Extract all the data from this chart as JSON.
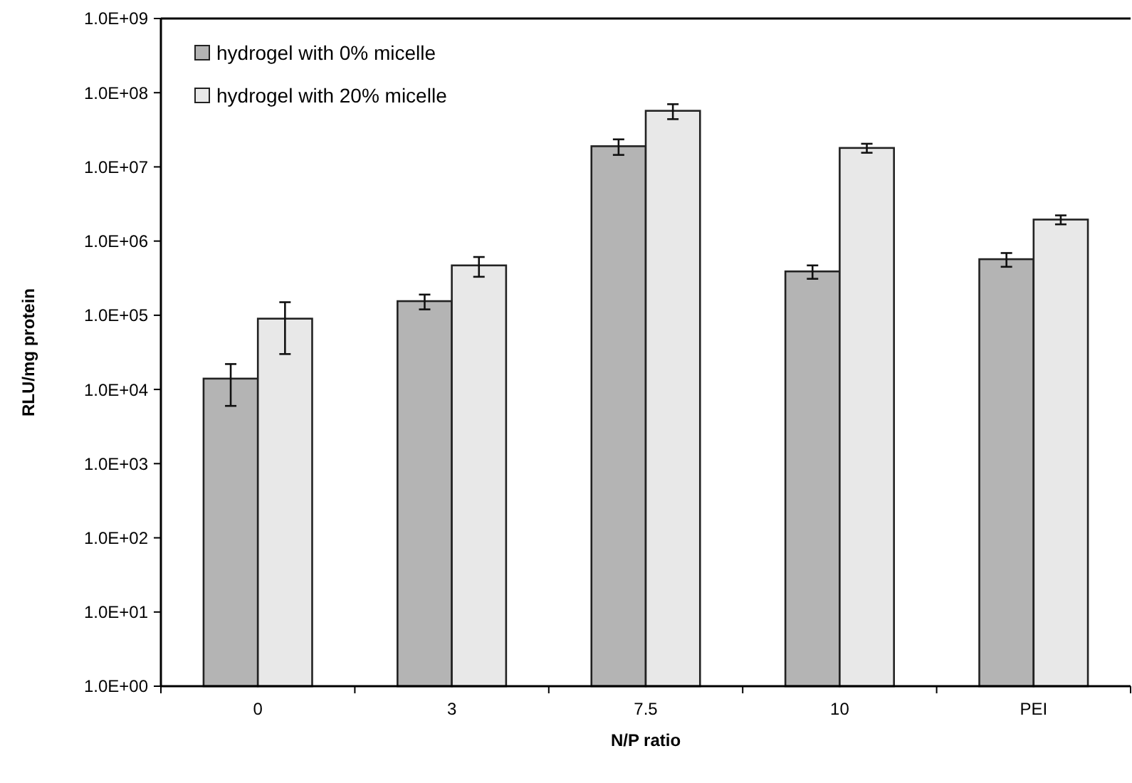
{
  "chart_data": {
    "type": "bar",
    "xlabel": "N/P ratio",
    "ylabel": "RLU/mg protein",
    "categories": [
      "0",
      "3",
      "7.5",
      "10",
      "PEI"
    ],
    "series": [
      {
        "name": "hydrogel with 0% micelle",
        "color": "#b4b4b4",
        "values": [
          14000,
          155000,
          19000000,
          390000,
          570000
        ],
        "errors": [
          8000,
          35000,
          4500000,
          80000,
          120000
        ]
      },
      {
        "name": "hydrogel with 20% micelle",
        "color": "#e8e8e8",
        "values": [
          90000,
          470000,
          57000000,
          18000000,
          1950000
        ],
        "errors": [
          60000,
          140000,
          13000000,
          2500000,
          270000
        ]
      }
    ],
    "log": true,
    "ylim": [
      1,
      1000000000
    ],
    "yticks": [
      {
        "value": 1,
        "label": "1.0E+00"
      },
      {
        "value": 10,
        "label": "1.0E+01"
      },
      {
        "value": 100,
        "label": "1.0E+02"
      },
      {
        "value": 1000,
        "label": "1.0E+03"
      },
      {
        "value": 10000,
        "label": "1.0E+04"
      },
      {
        "value": 100000,
        "label": "1.0E+05"
      },
      {
        "value": 1000000,
        "label": "1.0E+06"
      },
      {
        "value": 10000000,
        "label": "1.0E+07"
      },
      {
        "value": 100000000,
        "label": "1.0E+08"
      },
      {
        "value": 1000000000,
        "label": "1.0E+09"
      }
    ],
    "legend": "top left",
    "grid": false
  }
}
